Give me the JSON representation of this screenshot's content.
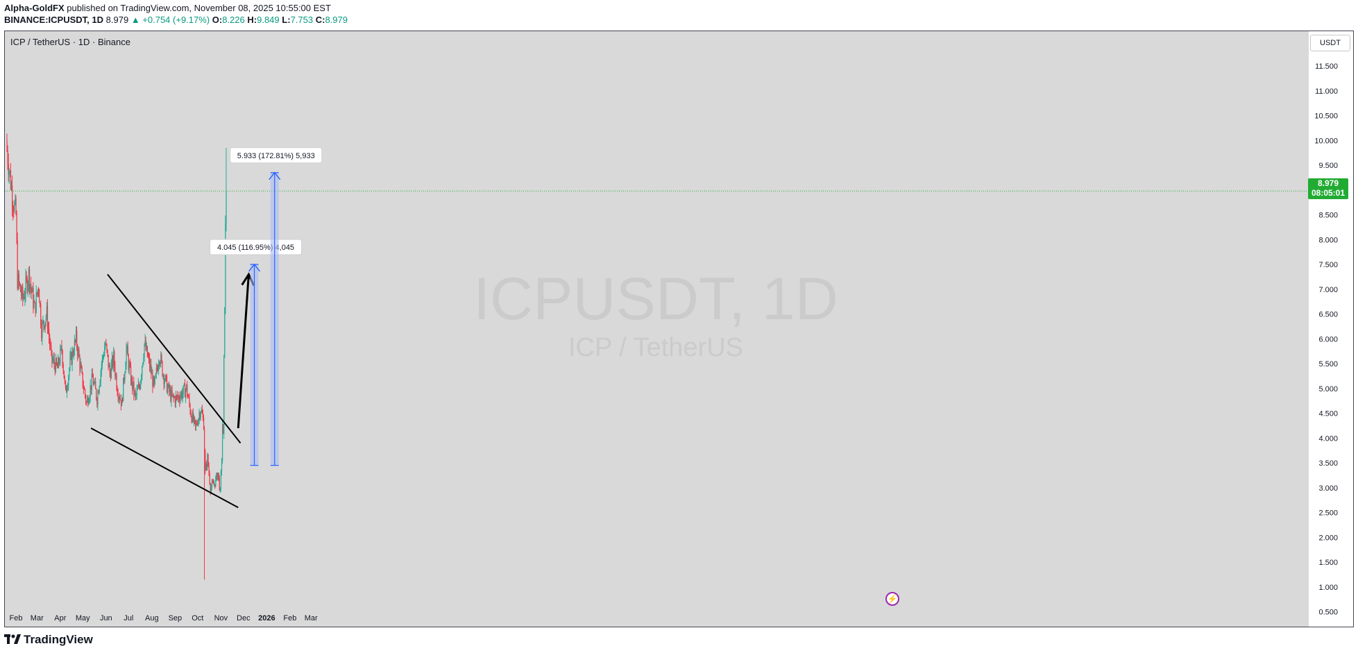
{
  "header": {
    "author": "Alpha-GoldFX",
    "published_text": "published on TradingView.com, November 08, 2025 10:55:00 EST",
    "symbol_line": "BINANCE:ICPUSDT, 1D",
    "last": "8.979",
    "change": "▲ +0.754 (+9.17%)",
    "o_label": "O:",
    "o": "8.226",
    "h_label": "H:",
    "h": "9.849",
    "l_label": "L:",
    "l": "7.753",
    "c_label": "C:",
    "c": "8.979"
  },
  "legend_title": "ICP / TetherUS · 1D · Binance",
  "watermark": {
    "symbol": "ICPUSDT, 1D",
    "name": "ICP / TetherUS"
  },
  "axis_unit": "USDT",
  "price_tag": {
    "price": "8.979",
    "countdown": "08:05:01"
  },
  "footer": {
    "brand": "TradingView"
  },
  "colors": {
    "up": "#22ab94",
    "down": "#f23645",
    "price_label": "#22ab33",
    "projection": "#2962ff"
  },
  "chart_data": {
    "type": "candlestick",
    "symbol": "ICPUSDT",
    "interval": "1D",
    "ylim": [
      0.2,
      12.2
    ],
    "yticks": [
      "11.500",
      "11.000",
      "10.500",
      "10.000",
      "9.500",
      "9.000",
      "8.500",
      "8.000",
      "7.500",
      "7.000",
      "6.500",
      "6.000",
      "5.500",
      "5.000",
      "4.500",
      "4.000",
      "3.500",
      "3.000",
      "2.500",
      "2.000",
      "1.500",
      "1.000",
      "0.500"
    ],
    "xticks": [
      "Feb",
      "Mar",
      "Apr",
      "May",
      "Jun",
      "Jul",
      "Aug",
      "Sep",
      "Oct",
      "Nov",
      "Dec",
      "2026",
      "Feb",
      "Mar"
    ],
    "last_price": 8.979,
    "close_path": [
      [
        "2025-01-20",
        9.8
      ],
      [
        "2025-01-28",
        8.8
      ],
      [
        "2025-02-01",
        8.5
      ],
      [
        "2025-02-03",
        7.2
      ],
      [
        "2025-02-10",
        6.8
      ],
      [
        "2025-02-18",
        7.3
      ],
      [
        "2025-02-26",
        6.6
      ],
      [
        "2025-03-03",
        7.1
      ],
      [
        "2025-03-07",
        6.2
      ],
      [
        "2025-03-14",
        6.5
      ],
      [
        "2025-03-20",
        5.6
      ],
      [
        "2025-03-28",
        5.4
      ],
      [
        "2025-04-03",
        5.8
      ],
      [
        "2025-04-08",
        4.9
      ],
      [
        "2025-04-14",
        5.5
      ],
      [
        "2025-04-22",
        6.0
      ],
      [
        "2025-04-30",
        5.2
      ],
      [
        "2025-05-06",
        4.7
      ],
      [
        "2025-05-14",
        5.2
      ],
      [
        "2025-05-20",
        4.8
      ],
      [
        "2025-05-26",
        5.5
      ],
      [
        "2025-05-31",
        5.9
      ],
      [
        "2025-06-06",
        5.3
      ],
      [
        "2025-06-11",
        5.6
      ],
      [
        "2025-06-16",
        5.0
      ],
      [
        "2025-06-22",
        4.7
      ],
      [
        "2025-06-28",
        5.8
      ],
      [
        "2025-07-04",
        5.2
      ],
      [
        "2025-07-10",
        4.8
      ],
      [
        "2025-07-16",
        5.1
      ],
      [
        "2025-07-22",
        5.9
      ],
      [
        "2025-07-30",
        5.4
      ],
      [
        "2025-08-04",
        5.0
      ],
      [
        "2025-08-11",
        5.7
      ],
      [
        "2025-08-16",
        5.3
      ],
      [
        "2025-08-22",
        5.0
      ],
      [
        "2025-08-28",
        4.8
      ],
      [
        "2025-09-03",
        4.8
      ],
      [
        "2025-09-10",
        4.9
      ],
      [
        "2025-09-16",
        5.0
      ],
      [
        "2025-09-22",
        4.5
      ],
      [
        "2025-09-28",
        4.2
      ],
      [
        "2025-10-05",
        4.6
      ],
      [
        "2025-10-09",
        4.3
      ],
      [
        "2025-10-11",
        3.3
      ],
      [
        "2025-10-14",
        3.6
      ],
      [
        "2025-10-18",
        3.0
      ],
      [
        "2025-10-24",
        3.1
      ],
      [
        "2025-10-28",
        3.3
      ],
      [
        "2025-10-31",
        2.9
      ],
      [
        "2025-11-02",
        3.6
      ],
      [
        "2025-11-03",
        4.3
      ],
      [
        "2025-11-04",
        4.0
      ],
      [
        "2025-11-05",
        5.5
      ],
      [
        "2025-11-06",
        6.8
      ],
      [
        "2025-11-07",
        8.2
      ],
      [
        "2025-11-08",
        8.979
      ]
    ],
    "notable_wicks": [
      {
        "date": "2025-10-10",
        "low": 1.15
      },
      {
        "date": "2025-11-08",
        "high": 9.849
      }
    ],
    "trendlines": [
      {
        "name": "falling wedge upper",
        "from": [
          "2025-06-03",
          7.3
        ],
        "to": [
          "2025-11-27",
          3.9
        ]
      },
      {
        "name": "falling wedge lower",
        "from": [
          "2025-05-12",
          4.2
        ],
        "to": [
          "2025-11-24",
          2.6
        ]
      }
    ],
    "arrow": {
      "from": [
        "2025-11-24",
        4.2
      ],
      "to": [
        "2025-12-08",
        7.3
      ]
    },
    "projections": [
      {
        "label": "4.045 (116.95%) 4,045",
        "from_date": "2025-12-10",
        "to_date": "2025-12-21",
        "low": 3.45,
        "high": 7.5
      },
      {
        "label": "5.933 (172.81%) 5,933",
        "from_date": "2026-01-06",
        "to_date": "2026-01-17",
        "low": 3.45,
        "high": 9.35
      }
    ]
  }
}
